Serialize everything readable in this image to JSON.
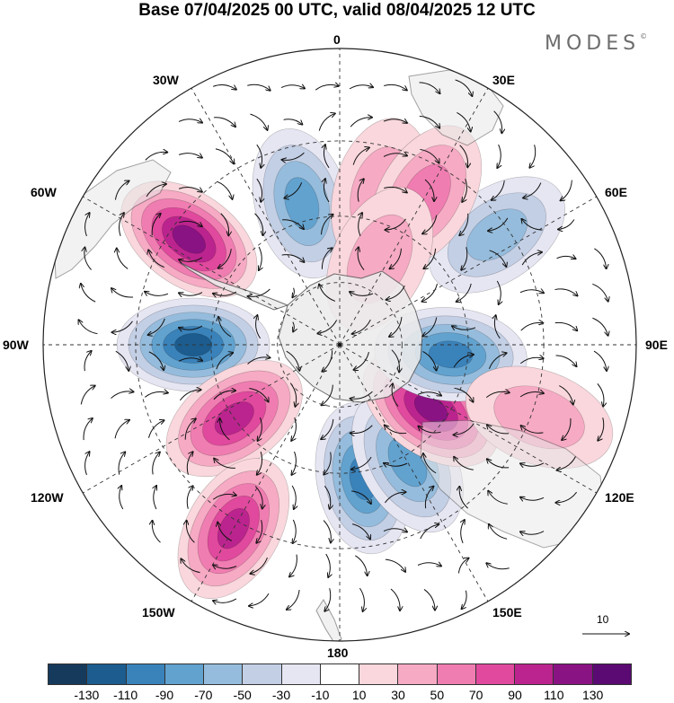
{
  "title": "Base 07/04/2025 00 UTC, valid 08/04/2025 12 UTC",
  "brand": "MODES",
  "brand_mark": "©",
  "longitude_labels": {
    "lon_0": "0",
    "lon_30e": "30E",
    "lon_60e": "60E",
    "lon_90e": "90E",
    "lon_120e": "120E",
    "lon_150e": "150E",
    "lon_180": "180",
    "lon_150w": "150W",
    "lon_120w": "120W",
    "lon_90w": "90W",
    "lon_60w": "60W",
    "lon_30w": "30W"
  },
  "reference_vector": {
    "value": "10"
  },
  "colorbar": {
    "colors": [
      "#163a5c",
      "#1c5c8e",
      "#3a82ba",
      "#62a2cf",
      "#95bcdc",
      "#c3cfe5",
      "#e6e6f3",
      "#ffffff",
      "#f9d7dc",
      "#f6aac4",
      "#f07db1",
      "#e0499d",
      "#bb248e",
      "#8a1384",
      "#5a0a72"
    ],
    "tick_labels": [
      "-130",
      "-110",
      "-90",
      "-70",
      "-50",
      "-30",
      "-10",
      "10",
      "30",
      "50",
      "70",
      "90",
      "110",
      "130"
    ]
  },
  "anomaly_centers": [
    {
      "lon": -15,
      "lat": -45,
      "value": -80
    },
    {
      "lon": -55,
      "lat": -35,
      "value": 120
    },
    {
      "lon": -90,
      "lat": -45,
      "value": -120
    },
    {
      "lon": -125,
      "lat": -50,
      "value": 100
    },
    {
      "lon": -150,
      "lat": -28,
      "value": 95
    },
    {
      "lon": 170,
      "lat": -48,
      "value": -100
    },
    {
      "lon": 150,
      "lat": -48,
      "value": -75
    },
    {
      "lon": 125,
      "lat": -55,
      "value": 125
    },
    {
      "lon": 95,
      "lat": -55,
      "value": -95
    },
    {
      "lon": 55,
      "lat": -33,
      "value": -50
    },
    {
      "lon": 15,
      "lat": -42,
      "value": 40
    },
    {
      "lon": 30,
      "lat": -38,
      "value": 50
    },
    {
      "lon": 25,
      "lat": -60,
      "value": 45
    },
    {
      "lon": 110,
      "lat": -28,
      "value": 35
    }
  ]
}
